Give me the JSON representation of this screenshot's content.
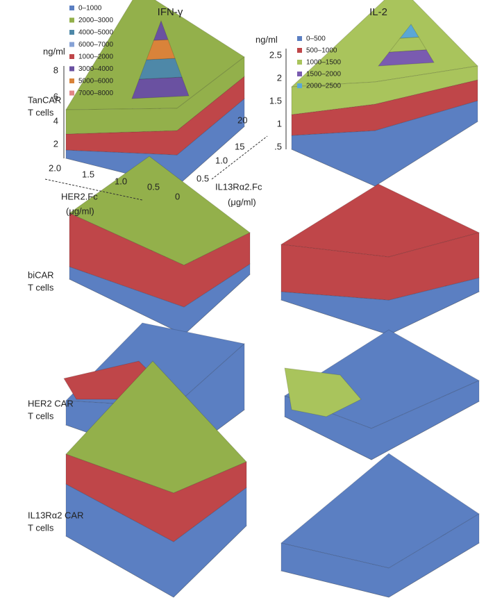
{
  "columns": [
    "IFN-γ",
    "IL-2"
  ],
  "legends": [
    {
      "items": [
        {
          "label": "0–1000",
          "color": "#5b7fc2"
        },
        {
          "label": "2000–3000",
          "color": "#93b04b"
        },
        {
          "label": "4000–5000",
          "color": "#4e88a8"
        },
        {
          "label": "6000–7000",
          "color": "#86a2d6"
        },
        {
          "label": "1000–2000",
          "color": "#bf4649"
        },
        {
          "label": "3000–4000",
          "color": "#6a51a1"
        },
        {
          "label": "5000–6000",
          "color": "#d9833a"
        },
        {
          "label": "7000–8000",
          "color": "#e08686"
        }
      ]
    },
    {
      "items": [
        {
          "label": "0–500",
          "color": "#5b7fc2"
        },
        {
          "label": "500–1000",
          "color": "#bf4649"
        },
        {
          "label": "1000–1500",
          "color": "#a9c45c"
        },
        {
          "label": "1500–2000",
          "color": "#7a5bb0"
        },
        {
          "label": "2000–2500",
          "color": "#5aa7d6"
        }
      ]
    }
  ],
  "rows": [
    [
      "TanCAR",
      "T cells"
    ],
    [
      "biCAR",
      "T cells"
    ],
    [
      "HER2 CAR",
      "T cells"
    ],
    [
      "IL13Rα2 CAR",
      "T cells"
    ]
  ],
  "axes": {
    "z_unit": [
      "ng/ml",
      "ng/ml"
    ],
    "z_ticks_left": [
      "8",
      "6",
      "4",
      "2"
    ],
    "z_ticks_right": [
      "2.5",
      "2",
      "1.5",
      "1",
      ".5"
    ],
    "her2_ticks": [
      "2.0",
      "1.5",
      "1.0",
      "0.5"
    ],
    "il13_ticks": [
      "0",
      "0.5",
      "1.0",
      "15",
      "20"
    ],
    "her2_label": [
      "HER2.Fc",
      "(μg/ml)"
    ],
    "il13_label": [
      "IL13Rα2.Fc",
      "(μg/ml)"
    ]
  }
}
